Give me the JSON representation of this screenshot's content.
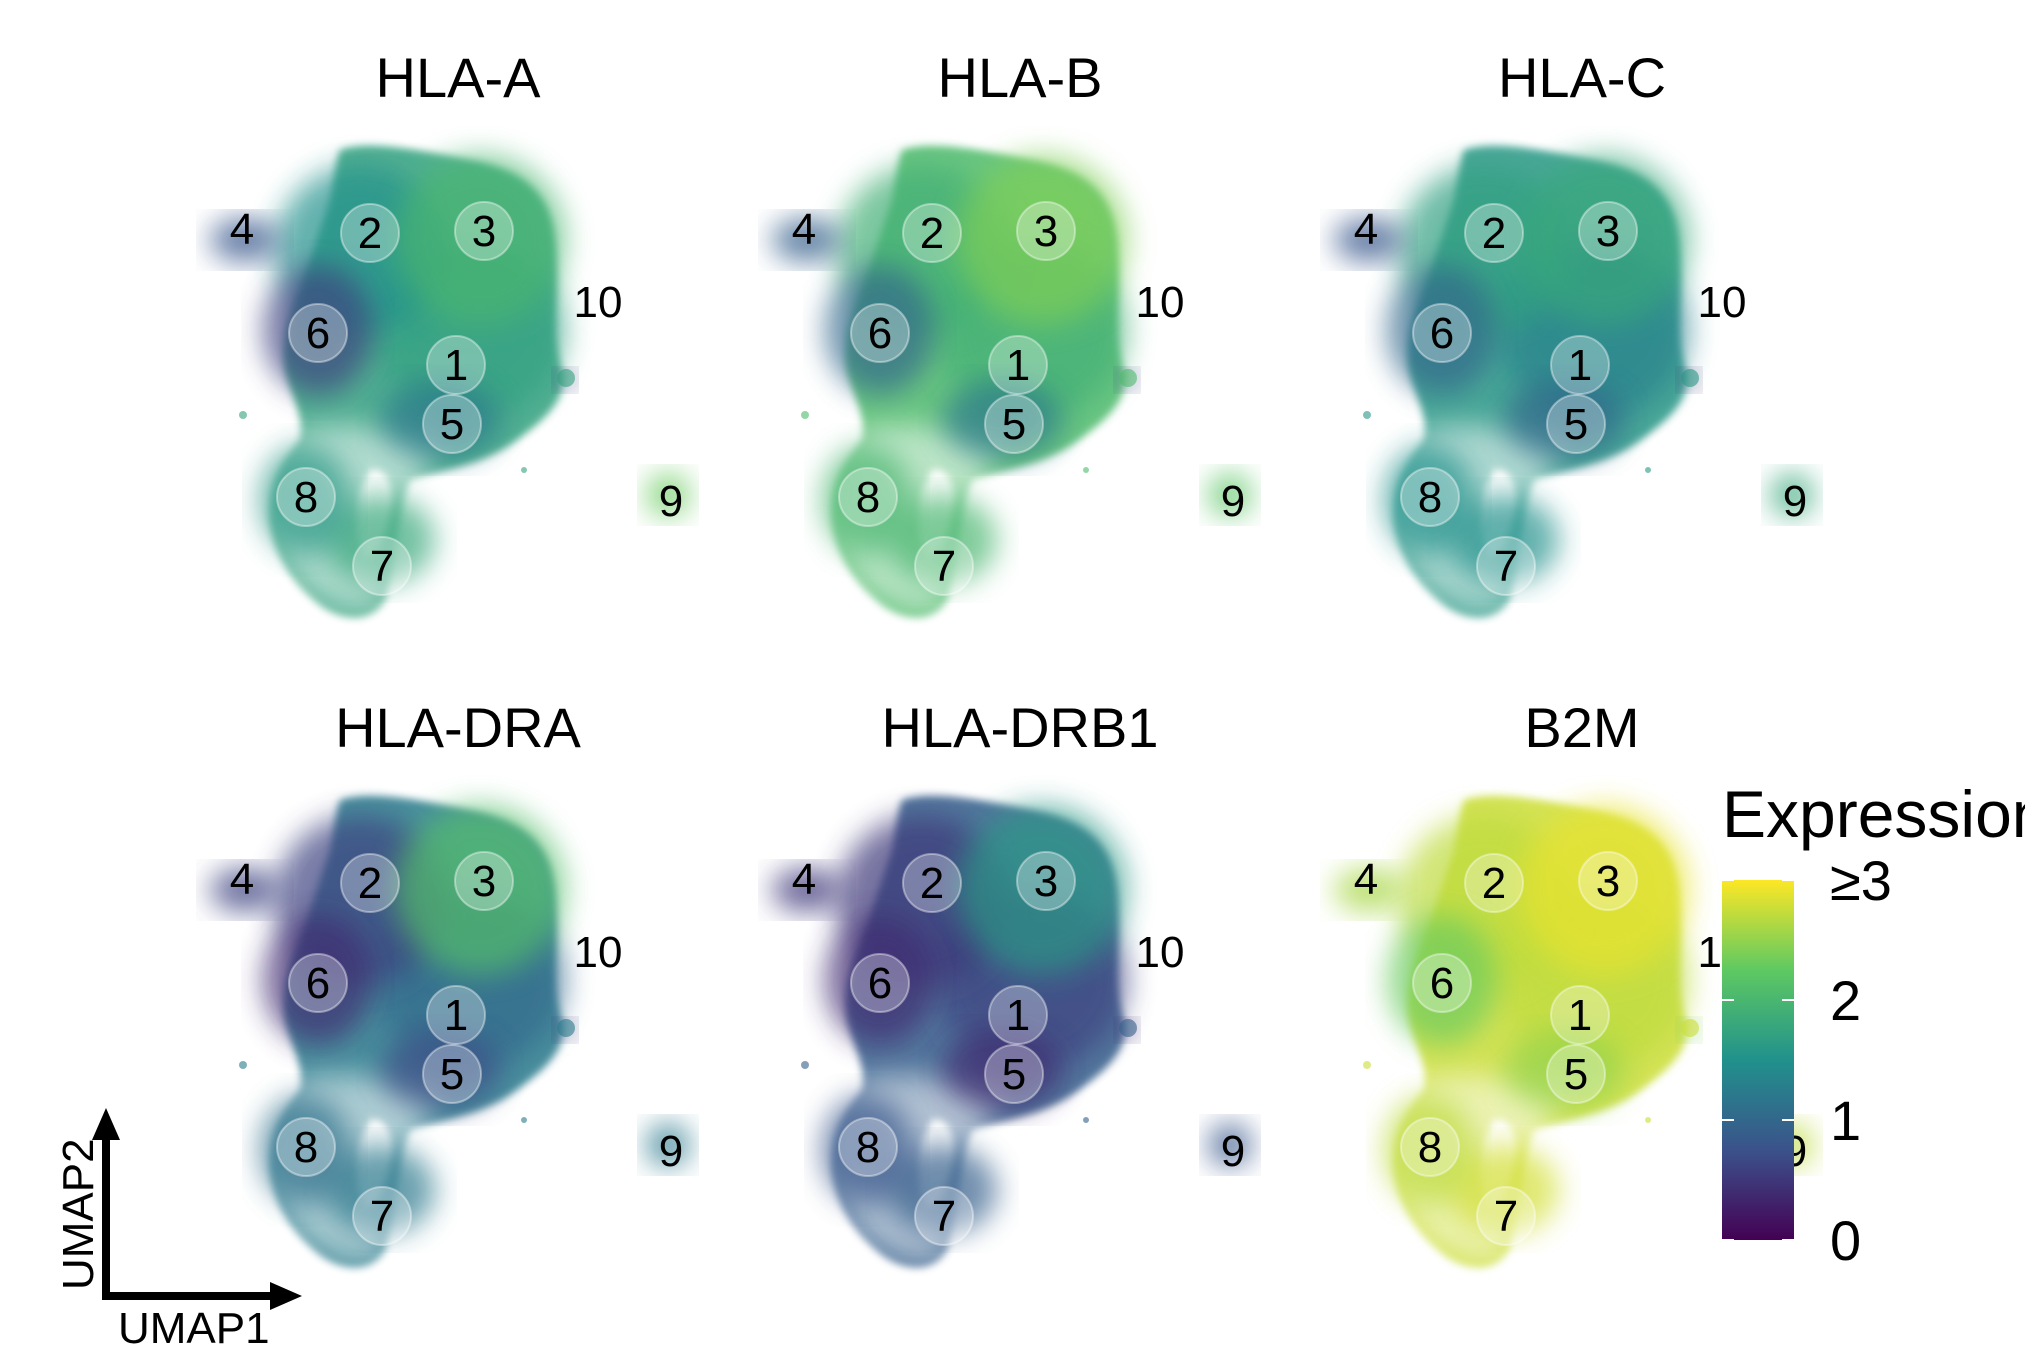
{
  "chart_data": {
    "type": "scatter",
    "subtype": "UMAP feature expression (6 panels)",
    "axis_indicator": {
      "x_label": "UMAP1",
      "y_label": "UMAP2"
    },
    "legend": {
      "title": "Expression",
      "ticks": [
        "0",
        "1",
        "2",
        "≥3"
      ],
      "tick_values": [
        0,
        1,
        2,
        3
      ],
      "colormap": "viridis",
      "colors": [
        "#440154",
        "#3b528b",
        "#21918c",
        "#5ec962",
        "#fde725"
      ],
      "placement": "right"
    },
    "clusters": [
      "1",
      "2",
      "3",
      "4",
      "5",
      "6",
      "7",
      "8",
      "9",
      "10"
    ],
    "panels": [
      {
        "title": "HLA-A",
        "cluster_expression": {
          "1": 1.7,
          "2": 1.5,
          "3": 2.0,
          "4": 0.8,
          "5": 1.2,
          "6": 0.6,
          "7": 1.8,
          "8": 1.6,
          "9": 2.3,
          "10": 0.6
        }
      },
      {
        "title": "HLA-B",
        "cluster_expression": {
          "1": 1.9,
          "2": 1.9,
          "3": 2.4,
          "4": 0.9,
          "5": 1.2,
          "6": 1.0,
          "7": 2.0,
          "8": 2.0,
          "9": 2.2,
          "10": 0.6
        }
      },
      {
        "title": "HLA-C",
        "cluster_expression": {
          "1": 1.3,
          "2": 1.7,
          "3": 1.8,
          "4": 0.8,
          "5": 1.0,
          "6": 1.0,
          "7": 1.5,
          "8": 1.5,
          "9": 1.8,
          "10": 0.5
        }
      },
      {
        "title": "HLA-DRA",
        "cluster_expression": {
          "1": 1.0,
          "2": 0.6,
          "3": 2.1,
          "4": 0.6,
          "5": 0.7,
          "6": 0.4,
          "7": 1.2,
          "8": 1.1,
          "9": 1.2,
          "10": 0.5
        }
      },
      {
        "title": "HLA-DRB1",
        "cluster_expression": {
          "1": 0.6,
          "2": 0.5,
          "3": 1.6,
          "4": 0.5,
          "5": 0.4,
          "6": 0.4,
          "7": 0.9,
          "8": 0.8,
          "9": 0.8,
          "10": 0.4
        }
      },
      {
        "title": "B2M",
        "cluster_expression": {
          "1": 2.7,
          "2": 2.7,
          "3": 2.9,
          "4": 2.6,
          "5": 2.5,
          "6": 2.3,
          "7": 2.8,
          "8": 2.7,
          "9": 2.7,
          "10": 2.4
        }
      }
    ]
  }
}
